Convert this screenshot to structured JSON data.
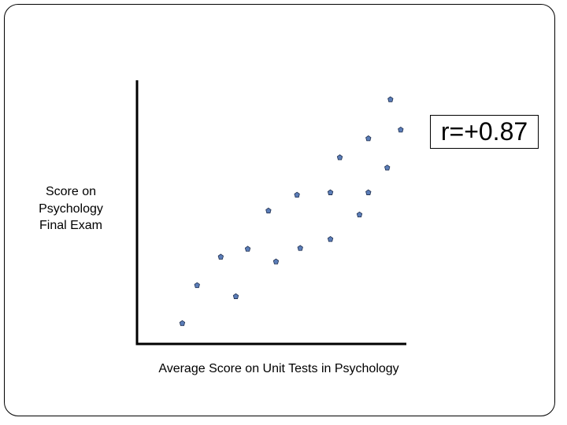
{
  "chart_data": {
    "type": "scatter",
    "xlabel": "Average Score on Unit Tests in Psychology",
    "ylabel_lines": [
      "Score on",
      "Psychology",
      "Final Exam"
    ],
    "annotation": "r=+0.87",
    "xlim": [
      0,
      100
    ],
    "ylim": [
      0,
      100
    ],
    "grid": false,
    "points": [
      {
        "x": 16.8,
        "y": 7.9
      },
      {
        "x": 22.3,
        "y": 22.3
      },
      {
        "x": 31.1,
        "y": 33.1
      },
      {
        "x": 36.7,
        "y": 18.1
      },
      {
        "x": 41.1,
        "y": 36.1
      },
      {
        "x": 48.8,
        "y": 50.6
      },
      {
        "x": 51.6,
        "y": 31.3
      },
      {
        "x": 59.4,
        "y": 56.6
      },
      {
        "x": 60.6,
        "y": 36.4
      },
      {
        "x": 71.8,
        "y": 57.5
      },
      {
        "x": 71.8,
        "y": 39.8
      },
      {
        "x": 75.3,
        "y": 70.8
      },
      {
        "x": 82.6,
        "y": 49.1
      },
      {
        "x": 85.9,
        "y": 57.5
      },
      {
        "x": 85.9,
        "y": 78.0
      },
      {
        "x": 92.9,
        "y": 66.9
      },
      {
        "x": 94.1,
        "y": 92.8
      },
      {
        "x": 97.9,
        "y": 81.3
      }
    ],
    "point_color": "#5b7db8",
    "axis_color": "#000000"
  }
}
